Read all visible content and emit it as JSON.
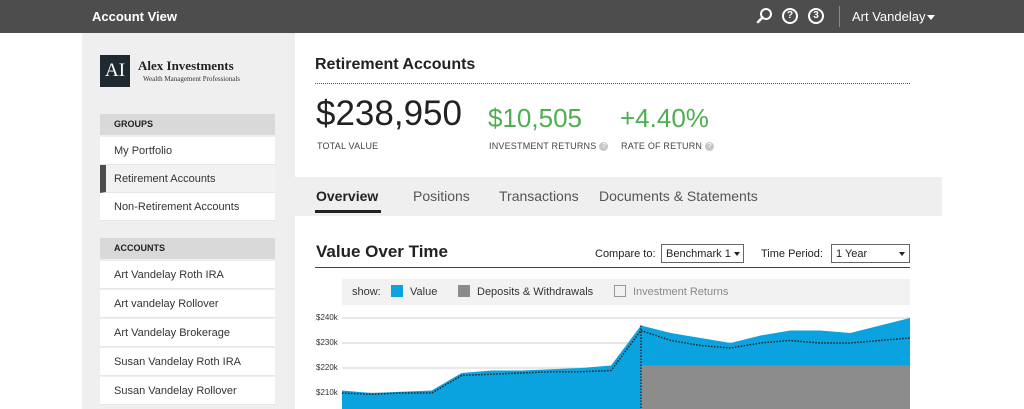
{
  "header": {
    "app_title": "Account View",
    "help_label": "?",
    "notifications_count": "3",
    "user_name": "Art Vandelay"
  },
  "brand": {
    "monogram": "AI",
    "name": "Alex Investments",
    "tagline": "Wealth Management Professionals"
  },
  "sidebar": {
    "groups_header": "GROUPS",
    "groups": [
      {
        "label": "My Portfolio",
        "active": false
      },
      {
        "label": "Retirement Accounts",
        "active": true
      },
      {
        "label": "Non-Retirement Accounts",
        "active": false
      }
    ],
    "accounts_header": "ACCOUNTS",
    "accounts": [
      {
        "label": "Art Vandelay Roth IRA"
      },
      {
        "label": "Art vandelay Rollover"
      },
      {
        "label": "Art Vandelay Brokerage"
      },
      {
        "label": "Susan Vandelay Roth IRA"
      },
      {
        "label": "Susan Vandelay Rollover"
      }
    ]
  },
  "main": {
    "title": "Retirement Accounts",
    "total_value": "$238,950",
    "total_value_label": "TOTAL VALUE",
    "investment_returns": "$10,505",
    "investment_returns_label": "INVESTMENT RETURNS",
    "rate_of_return": "+4.40%",
    "rate_of_return_label": "RATE OF RETURN",
    "tabs": [
      {
        "label": "Overview",
        "active": true
      },
      {
        "label": "Positions",
        "active": false
      },
      {
        "label": "Transactions",
        "active": false
      },
      {
        "label": "Documents & Statements",
        "active": false
      }
    ]
  },
  "value_chart": {
    "title": "Value Over Time",
    "compare_label": "Compare to:",
    "compare_value": "Benchmark 1",
    "period_label": "Time Period:",
    "period_value": "1 Year",
    "legend": {
      "show_label": "show:",
      "items": [
        {
          "label": "Value",
          "checked": true,
          "color": "#0aa3e0"
        },
        {
          "label": "Deposits & Withdrawals",
          "checked": true,
          "color": "#8c8c8c"
        },
        {
          "label": "Investment Returns",
          "checked": false,
          "color": "#ffffff"
        }
      ]
    }
  },
  "chart_data": {
    "type": "area",
    "y_tick_labels": [
      "$240k",
      "$230k",
      "$220k",
      "$210k"
    ],
    "ylim": [
      205,
      240
    ],
    "x_points": 20,
    "series": [
      {
        "name": "Value",
        "color": "#0aa3e0",
        "type": "area",
        "values": [
          211,
          210,
          210.5,
          211,
          218,
          219,
          219,
          219.5,
          220,
          221,
          237,
          234,
          232,
          230,
          233,
          235,
          235,
          234,
          237,
          240
        ]
      },
      {
        "name": "Deposits & Withdrawals",
        "color": "#8c8c8c",
        "type": "step-area",
        "values": [
          null,
          null,
          null,
          null,
          null,
          null,
          null,
          null,
          null,
          null,
          221,
          221,
          221,
          221,
          221,
          221,
          221,
          221,
          221,
          221
        ]
      },
      {
        "name": "Benchmark",
        "color": "#222222",
        "type": "dotted-line",
        "values": [
          210,
          209.5,
          210,
          210,
          217,
          217.5,
          218,
          218.5,
          218.5,
          219,
          235,
          231,
          229,
          228,
          230,
          231,
          230,
          230,
          231,
          232
        ]
      }
    ]
  }
}
